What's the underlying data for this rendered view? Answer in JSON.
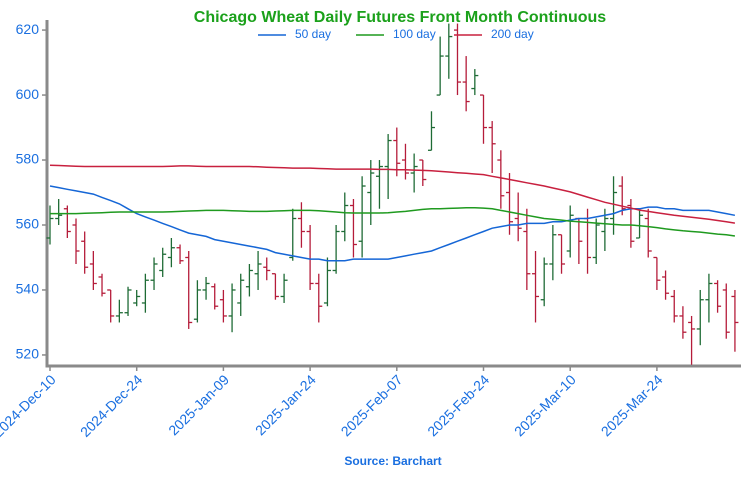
{
  "chart_data": {
    "type": "ohlc",
    "title": "Chicago Wheat Daily Futures Front Month Continuous",
    "source": "Source: Barchart",
    "categories": [
      "2024-Dec-10",
      null,
      null,
      null,
      null,
      null,
      null,
      null,
      null,
      null,
      "2024-Dec-24",
      null,
      null,
      null,
      null,
      null,
      null,
      null,
      null,
      null,
      "2025-Jan-09",
      null,
      null,
      null,
      null,
      null,
      null,
      null,
      null,
      null,
      "2025-Jan-24",
      null,
      null,
      null,
      null,
      null,
      null,
      null,
      null,
      null,
      "2025-Feb-07",
      null,
      null,
      null,
      null,
      null,
      null,
      null,
      null,
      null,
      "2025-Feb-24",
      null,
      null,
      null,
      null,
      null,
      null,
      null,
      null,
      null,
      "2025-Mar-10",
      null,
      null,
      null,
      null,
      null,
      null,
      null,
      null,
      null,
      "2025-Mar-24",
      null,
      null,
      null,
      null,
      null,
      null,
      null,
      null,
      null
    ],
    "ohlc": {
      "up_color": "#1e6b35",
      "down_color": "#b51c3a",
      "open": [
        556,
        562,
        565,
        560,
        555,
        548,
        544,
        540,
        532,
        533,
        536,
        536,
        543,
        546,
        550,
        553,
        550,
        531,
        540,
        541,
        537,
        532,
        536,
        541,
        545,
        547,
        545,
        538,
        550,
        562,
        558,
        542,
        536,
        546,
        558,
        566,
        555,
        570,
        575,
        578,
        586,
        580,
        576,
        580,
        583,
        600,
        612,
        620,
        604,
        602,
        600,
        590,
        580,
        570,
        562,
        558,
        545,
        537,
        548,
        557,
        552,
        562,
        562,
        550,
        558,
        562,
        572,
        566,
        556,
        562,
        550,
        544,
        538,
        532,
        530,
        528,
        537,
        542,
        540,
        538
      ],
      "high": [
        566,
        568,
        566,
        562,
        558,
        552,
        545,
        540,
        537,
        541,
        540,
        545,
        550,
        553,
        556,
        554,
        552,
        543,
        544,
        542,
        540,
        542,
        545,
        548,
        552,
        550,
        545,
        545,
        565,
        567,
        560,
        545,
        550,
        560,
        570,
        568,
        575,
        580,
        580,
        588,
        590,
        585,
        582,
        580,
        595,
        618,
        622,
        622,
        612,
        608,
        600,
        592,
        583,
        576,
        570,
        565,
        552,
        550,
        560,
        557,
        566,
        562,
        565,
        562,
        565,
        575,
        575,
        568,
        565,
        565,
        550,
        546,
        540,
        535,
        532,
        540,
        545,
        543,
        542,
        540
      ],
      "low": [
        554,
        560,
        556,
        548,
        545,
        540,
        538,
        530,
        530,
        532,
        535,
        533,
        540,
        544,
        547,
        548,
        528,
        530,
        537,
        534,
        530,
        527,
        532,
        538,
        540,
        543,
        537,
        536,
        549,
        553,
        540,
        530,
        535,
        545,
        555,
        550,
        550,
        560,
        565,
        568,
        575,
        574,
        570,
        572,
        583,
        600,
        605,
        600,
        595,
        600,
        585,
        576,
        565,
        557,
        555,
        540,
        530,
        535,
        543,
        545,
        550,
        548,
        545,
        548,
        552,
        557,
        563,
        553,
        556,
        550,
        540,
        537,
        530,
        525,
        517,
        523,
        530,
        533,
        525,
        521
      ],
      "close": [
        562,
        563,
        558,
        552,
        547,
        542,
        539,
        532,
        533,
        540,
        538,
        543,
        548,
        551,
        553,
        549,
        530,
        540,
        542,
        535,
        532,
        540,
        543,
        546,
        548,
        546,
        538,
        543,
        562,
        558,
        542,
        535,
        546,
        558,
        566,
        554,
        572,
        576,
        578,
        586,
        579,
        576,
        578,
        574,
        590,
        612,
        618,
        604,
        598,
        606,
        590,
        585,
        569,
        561,
        559,
        545,
        538,
        548,
        557,
        548,
        563,
        555,
        550,
        560,
        562,
        570,
        565,
        555,
        563,
        552,
        543,
        539,
        532,
        527,
        528,
        537,
        542,
        535,
        527,
        530
      ]
    },
    "series": [
      {
        "name": "50 day",
        "color": "#1566d6",
        "values": [
          572,
          571.5,
          571,
          570.5,
          570,
          569.5,
          568.5,
          567.5,
          566.5,
          565,
          563.5,
          562.5,
          561.5,
          560.5,
          559.5,
          558.5,
          557.5,
          557,
          556.5,
          555.5,
          555,
          554.5,
          554,
          553.5,
          553,
          552.5,
          551.5,
          551,
          550.5,
          550,
          549.5,
          549.5,
          549,
          549,
          549,
          549.5,
          549.5,
          549.5,
          549.5,
          549.5,
          550,
          550.5,
          551,
          551.5,
          552,
          553,
          554,
          555,
          556,
          557,
          558,
          559,
          559.5,
          560,
          560,
          560.5,
          560.5,
          560.5,
          561,
          561,
          561.5,
          562,
          562,
          562.5,
          563,
          563.5,
          564.5,
          565,
          565,
          565.5,
          565.5,
          565,
          565,
          564.5,
          564.5,
          564.5,
          564.5,
          564,
          563.5,
          563
        ]
      },
      {
        "name": "100 day",
        "color": "#1f9a1f",
        "values": [
          563.5,
          563.5,
          563.5,
          563.5,
          563.6,
          563.7,
          563.8,
          563.9,
          564,
          564,
          564,
          564,
          564,
          564,
          564.1,
          564.2,
          564.3,
          564.4,
          564.5,
          564.5,
          564.5,
          564.4,
          564.3,
          564.2,
          564.2,
          564.2,
          564.3,
          564.4,
          564.5,
          564.5,
          564.5,
          564.4,
          564.2,
          564,
          563.8,
          563.7,
          563.7,
          563.7,
          563.7,
          563.8,
          564,
          564.2,
          564.5,
          564.8,
          565,
          565,
          565.1,
          565.2,
          565.3,
          565.3,
          565.2,
          565,
          564.5,
          564,
          563.5,
          563,
          562.5,
          562,
          561.8,
          561.5,
          561.2,
          561,
          560.8,
          560.6,
          560.4,
          560.2,
          560,
          560,
          559.8,
          559.5,
          559.2,
          558.8,
          558.5,
          558.2,
          558,
          557.8,
          557.5,
          557.2,
          557,
          556.6
        ]
      },
      {
        "name": "200 day",
        "color": "#c8203f",
        "values": [
          578.4,
          578.3,
          578.2,
          578.1,
          578,
          578,
          578,
          578,
          578,
          578,
          578,
          578,
          578,
          578,
          578.1,
          578.2,
          578.2,
          578.1,
          578,
          578,
          578,
          578,
          578,
          578,
          577.9,
          577.8,
          577.7,
          577.6,
          577.5,
          577.5,
          577.5,
          577.4,
          577.3,
          577.2,
          577.2,
          577.2,
          577.2,
          577.2,
          577.1,
          577.1,
          577,
          577,
          576.9,
          576.8,
          576.7,
          576.5,
          576.3,
          576.1,
          575.9,
          575.7,
          575.5,
          575,
          574.5,
          574,
          573.5,
          573,
          572.5,
          572,
          571.4,
          570.8,
          570.2,
          569.4,
          568.6,
          567.8,
          567,
          566.4,
          565.8,
          565.2,
          564.6,
          564.2,
          563.8,
          563.4,
          563,
          562.7,
          562.4,
          562.1,
          561.8,
          561.4,
          561,
          560.6
        ]
      }
    ],
    "ylim": [
      516.6,
      623.1
    ],
    "yticks": [
      520,
      540,
      560,
      580,
      600,
      620
    ],
    "grid": false,
    "title_color": "#1ba11b",
    "label_color": "#1a6fe0",
    "axis_color": "#8a8a8a"
  }
}
